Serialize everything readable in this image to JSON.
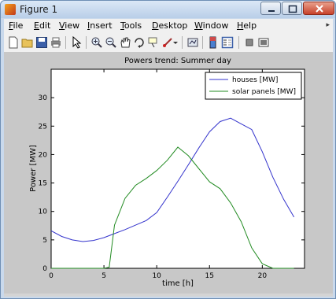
{
  "window": {
    "title": "Figure 1",
    "icon": "matlab-icon"
  },
  "menu": {
    "items": [
      {
        "label": "File",
        "u": "F",
        "rest": "ile"
      },
      {
        "label": "Edit",
        "u": "E",
        "rest": "dit"
      },
      {
        "label": "View",
        "u": "V",
        "rest": "iew"
      },
      {
        "label": "Insert",
        "u": "I",
        "rest": "nsert"
      },
      {
        "label": "Tools",
        "u": "T",
        "rest": "ools"
      },
      {
        "label": "Desktop",
        "u": "D",
        "rest": "esktop"
      },
      {
        "label": "Window",
        "u": "W",
        "rest": "indow"
      },
      {
        "label": "Help",
        "u": "H",
        "rest": "elp"
      }
    ]
  },
  "toolbar": {
    "icons": [
      "new-figure-icon",
      "open-file-icon",
      "save-icon",
      "print-icon",
      "edit-plot-arrow-icon",
      "zoom-in-icon",
      "zoom-out-icon",
      "pan-hand-icon",
      "rotate-3d-icon",
      "data-cursor-icon",
      "brush-icon",
      "link-plot-icon",
      "colorbar-icon",
      "legend-icon",
      "hide-plot-tools-icon",
      "show-plot-tools-icon"
    ]
  },
  "chart_data": {
    "type": "line",
    "title": "Powers trend: Summer day",
    "xlabel": "time [h]",
    "ylabel": "Power [MW]",
    "xlim": [
      0,
      24
    ],
    "ylim": [
      0,
      35
    ],
    "xticks": [
      0,
      5,
      10,
      15,
      20
    ],
    "yticks": [
      0,
      5,
      10,
      15,
      20,
      25,
      30
    ],
    "grid": false,
    "legend_position": "top-right",
    "series": [
      {
        "name": "houses [MW]",
        "color": "#3333cc",
        "x": [
          0,
          1,
          2,
          3,
          4,
          5,
          6,
          7,
          8,
          9,
          10,
          11,
          12,
          13,
          14,
          15,
          16,
          17,
          18,
          19,
          20,
          21,
          22,
          23
        ],
        "y": [
          6.6,
          5.6,
          5.0,
          4.7,
          4.9,
          5.4,
          6.1,
          6.8,
          7.6,
          8.4,
          9.8,
          12.5,
          15.3,
          18.2,
          21.2,
          24.0,
          25.8,
          26.4,
          25.4,
          24.4,
          20.5,
          16.0,
          12.2,
          9.0
        ]
      },
      {
        "name": "solar panels [MW]",
        "color": "#228b22",
        "x": [
          0,
          1,
          2,
          3,
          4,
          5,
          5.5,
          6,
          7,
          8,
          9,
          10,
          11,
          12,
          13,
          14,
          15,
          16,
          17,
          18,
          19,
          20,
          21,
          22,
          23
        ],
        "y": [
          0,
          0,
          0,
          0,
          0,
          0,
          0.2,
          7.6,
          12.3,
          14.6,
          15.8,
          17.2,
          19.0,
          21.3,
          19.8,
          17.5,
          15.2,
          14.0,
          11.5,
          8.2,
          3.6,
          0.8,
          0,
          0,
          0
        ]
      }
    ]
  }
}
